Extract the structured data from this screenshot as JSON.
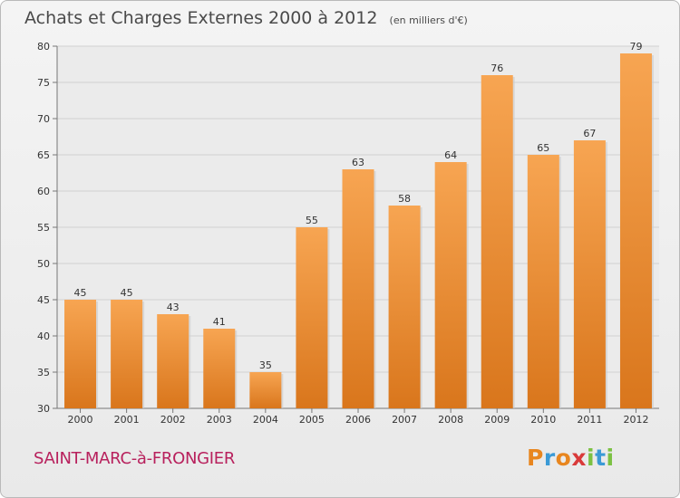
{
  "header": {
    "title": "Achats et Charges Externes 2000 à 2012",
    "unit": "(en milliers d'€)"
  },
  "footer": {
    "location": "SAINT-MARC-à-FRONGIER",
    "logo": "Proxiti",
    "logo_letters": [
      "P",
      "r",
      "o",
      "x",
      "i",
      "t",
      "i"
    ]
  },
  "colors": {
    "bar_top": "#f7a552",
    "bar_bottom": "#d9761c",
    "title": "#4a4a4a",
    "location": "#b8215d"
  },
  "chart_data": {
    "type": "bar",
    "title": "Achats et Charges Externes 2000 à 2012",
    "subtitle": "(en milliers d'€)",
    "xlabel": "",
    "ylabel": "",
    "categories": [
      "2000",
      "2001",
      "2002",
      "2003",
      "2004",
      "2005",
      "2006",
      "2007",
      "2008",
      "2009",
      "2010",
      "2011",
      "2012"
    ],
    "values": [
      45,
      45,
      43,
      41,
      35,
      55,
      63,
      58,
      64,
      76,
      65,
      67,
      79
    ],
    "ylim": [
      30,
      80
    ],
    "yticks": [
      30,
      35,
      40,
      45,
      50,
      55,
      60,
      65,
      70,
      75,
      80
    ],
    "grid": true,
    "data_labels": true
  }
}
